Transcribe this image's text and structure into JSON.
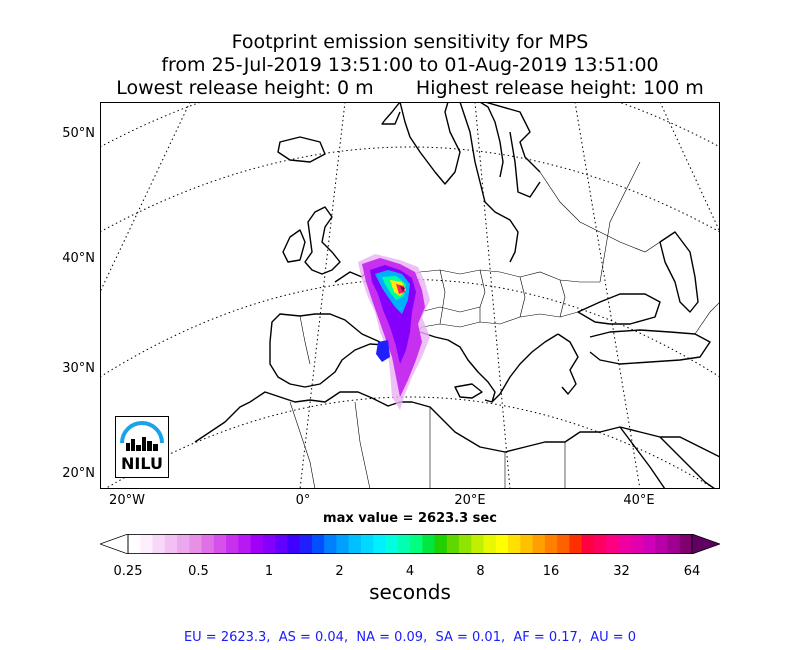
{
  "title": {
    "line1": "Footprint emission sensitivity for MPS",
    "line2": "from 25-Jul-2019 13:51:00 to 01-Aug-2019 13:51:00",
    "line3": "Lowest release height: 0 m       Highest release height: 100 m"
  },
  "map": {
    "lat_labels": [
      "50°N",
      "40°N",
      "30°N",
      "20°N"
    ],
    "lon_labels": [
      "20°W",
      "0°",
      "20°E",
      "40°E"
    ],
    "grid": true,
    "land_color": "#ffffff",
    "coast_color": "#000000"
  },
  "max_value": "max value = 2623.3 sec",
  "colorbar": {
    "ticks": [
      "0.25",
      "0.5",
      "1",
      "2",
      "4",
      "8",
      "16",
      "32",
      "64"
    ],
    "label": "seconds",
    "colors": [
      "#ffffff",
      "#fdeffd",
      "#f8d8f8",
      "#f2c0f2",
      "#eca8ec",
      "#e690e6",
      "#e070e6",
      "#d650ec",
      "#c830f0",
      "#b818f4",
      "#a000f8",
      "#8400fc",
      "#6400ff",
      "#4000ff",
      "#2020ff",
      "#0050ff",
      "#0080ff",
      "#00a0ff",
      "#00c0ff",
      "#00d8ff",
      "#00f0ff",
      "#00ffe0",
      "#00ffb0",
      "#00ff80",
      "#00e840",
      "#20d000",
      "#60d800",
      "#90e400",
      "#c0f000",
      "#e8f800",
      "#ffff00",
      "#ffe000",
      "#ffc000",
      "#ffa000",
      "#ff8000",
      "#ff6000",
      "#ff3000",
      "#ff0040",
      "#ff0060",
      "#ff0080",
      "#f000a0",
      "#e000b0",
      "#d000b8",
      "#b800a8",
      "#a00090",
      "#800070"
    ],
    "extend_low": "#ffffff",
    "extend_high": "#600060"
  },
  "logo": {
    "text": "NILU",
    "arc_color": "#1aa3e8"
  },
  "footer": "EU = 2623.3,  AS = 0.04,  NA = 0.09,  SA = 0.01,  AF = 0.17,  AU = 0"
}
